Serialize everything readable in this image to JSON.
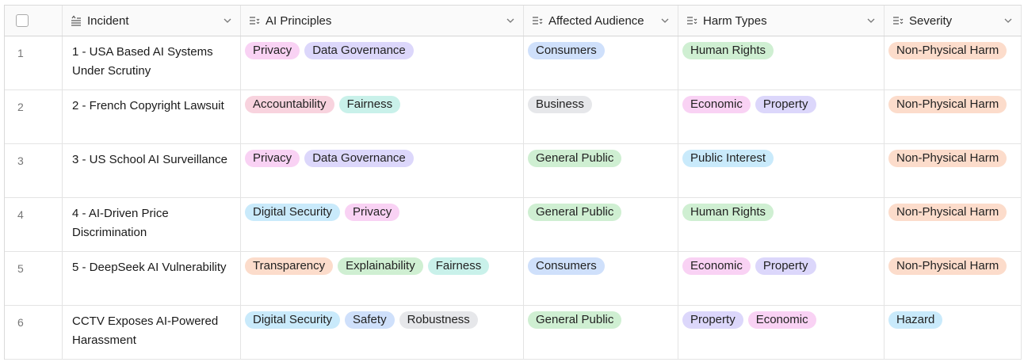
{
  "columns": [
    {
      "label": "Incident",
      "icon": "sort-text-icon"
    },
    {
      "label": "AI Principles",
      "icon": "multiselect-icon"
    },
    {
      "label": "Affected Audience",
      "icon": "multiselect-icon"
    },
    {
      "label": "Harm Types",
      "icon": "multiselect-icon"
    },
    {
      "label": "Severity",
      "icon": "multiselect-icon"
    }
  ],
  "tag_colors": {
    "pink": "#f9d2f4",
    "lavender": "#dcd7fb",
    "rose": "#f8d3de",
    "mint": "#c9f1ea",
    "blue": "#cfe0fb",
    "gray": "#e6e7ea",
    "green": "#cfefd2",
    "peach": "#fcdccb",
    "sky": "#c9eafb"
  },
  "rows": [
    {
      "num": "1",
      "incident": "1 - USA Based AI Systems Under Scrutiny",
      "principles": [
        {
          "t": "Privacy",
          "c": "#f9d2f4"
        },
        {
          "t": "Data Governance",
          "c": "#dcd7fb"
        }
      ],
      "audience": [
        {
          "t": "Consumers",
          "c": "#cfe0fb"
        }
      ],
      "harms": [
        {
          "t": "Human Rights",
          "c": "#cfefd2"
        }
      ],
      "severity": [
        {
          "t": "Non-Physical Harm",
          "c": "#fcdccb"
        }
      ]
    },
    {
      "num": "2",
      "incident": "2 - French Copyright Lawsuit",
      "principles": [
        {
          "t": "Accountability",
          "c": "#f8d3de"
        },
        {
          "t": "Fairness",
          "c": "#c9f1ea"
        }
      ],
      "audience": [
        {
          "t": "Business",
          "c": "#e6e7ea"
        }
      ],
      "harms": [
        {
          "t": "Economic",
          "c": "#f9d2f4"
        },
        {
          "t": "Property",
          "c": "#dcd7fb"
        }
      ],
      "severity": [
        {
          "t": "Non-Physical Harm",
          "c": "#fcdccb"
        }
      ]
    },
    {
      "num": "3",
      "incident": "3 - US School AI Surveillance",
      "principles": [
        {
          "t": "Privacy",
          "c": "#f9d2f4"
        },
        {
          "t": "Data Governance",
          "c": "#dcd7fb"
        }
      ],
      "audience": [
        {
          "t": "General Public",
          "c": "#cfefd2"
        }
      ],
      "harms": [
        {
          "t": "Public Interest",
          "c": "#c9eafb"
        }
      ],
      "severity": [
        {
          "t": "Non-Physical Harm",
          "c": "#fcdccb"
        }
      ]
    },
    {
      "num": "4",
      "incident": "4 - AI-Driven Price Discrimination",
      "principles": [
        {
          "t": "Digital Security",
          "c": "#c9eafb"
        },
        {
          "t": "Privacy",
          "c": "#f9d2f4"
        }
      ],
      "audience": [
        {
          "t": "General Public",
          "c": "#cfefd2"
        }
      ],
      "harms": [
        {
          "t": "Human Rights",
          "c": "#cfefd2"
        }
      ],
      "severity": [
        {
          "t": "Non-Physical Harm",
          "c": "#fcdccb"
        }
      ]
    },
    {
      "num": "5",
      "incident": "5 - DeepSeek AI Vulnerability",
      "principles": [
        {
          "t": "Transparency",
          "c": "#fcdccb"
        },
        {
          "t": "Explainability",
          "c": "#cfefd2"
        },
        {
          "t": "Fairness",
          "c": "#c9f1ea"
        }
      ],
      "audience": [
        {
          "t": "Consumers",
          "c": "#cfe0fb"
        }
      ],
      "harms": [
        {
          "t": "Economic",
          "c": "#f9d2f4"
        },
        {
          "t": "Property",
          "c": "#dcd7fb"
        }
      ],
      "severity": [
        {
          "t": "Non-Physical Harm",
          "c": "#fcdccb"
        }
      ]
    },
    {
      "num": "6",
      "incident": "CCTV Exposes AI-Powered Harassment",
      "principles": [
        {
          "t": "Digital Security",
          "c": "#c9eafb"
        },
        {
          "t": "Safety",
          "c": "#cfe0fb"
        },
        {
          "t": "Robustness",
          "c": "#e6e7ea"
        }
      ],
      "audience": [
        {
          "t": "General Public",
          "c": "#cfefd2"
        }
      ],
      "harms": [
        {
          "t": "Property",
          "c": "#dcd7fb"
        },
        {
          "t": "Economic",
          "c": "#f9d2f4"
        }
      ],
      "severity": [
        {
          "t": "Hazard",
          "c": "#c9eafb"
        }
      ]
    }
  ]
}
